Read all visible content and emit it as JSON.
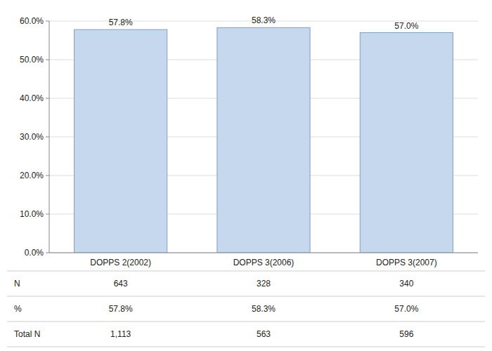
{
  "chart_data": {
    "type": "bar",
    "categories": [
      "DOPPS 2(2002)",
      "DOPPS 3(2006)",
      "DOPPS 3(2007)"
    ],
    "values": [
      57.8,
      58.3,
      57.0
    ],
    "value_labels": [
      "57.8%",
      "58.3%",
      "57.0%"
    ],
    "data_labels": true,
    "color": "#c5d8ee",
    "ylim": [
      0,
      60.0
    ],
    "yticks": [
      {
        "value": 0,
        "label": "0.0%"
      },
      {
        "value": 10.0,
        "label": "10.0%"
      },
      {
        "value": 20.0,
        "label": "20.0%"
      },
      {
        "value": 30.0,
        "label": "30.0%"
      },
      {
        "value": 40.0,
        "label": "40.0%"
      },
      {
        "value": 50.0,
        "label": "50.0%"
      },
      {
        "value": 60.0,
        "label": "60.0%"
      }
    ],
    "grid": true,
    "table": [
      {
        "label": "N",
        "values": [
          643,
          328,
          340
        ]
      },
      {
        "label": "%",
        "values": [
          57.8,
          58.3,
          57.0
        ],
        "value_labels": [
          "57.8%",
          "58.3%",
          "57.0%"
        ]
      },
      {
        "label": "Total N",
        "values": [
          1113,
          563,
          596
        ],
        "value_labels": [
          "1,113",
          "563",
          "596"
        ]
      }
    ]
  }
}
